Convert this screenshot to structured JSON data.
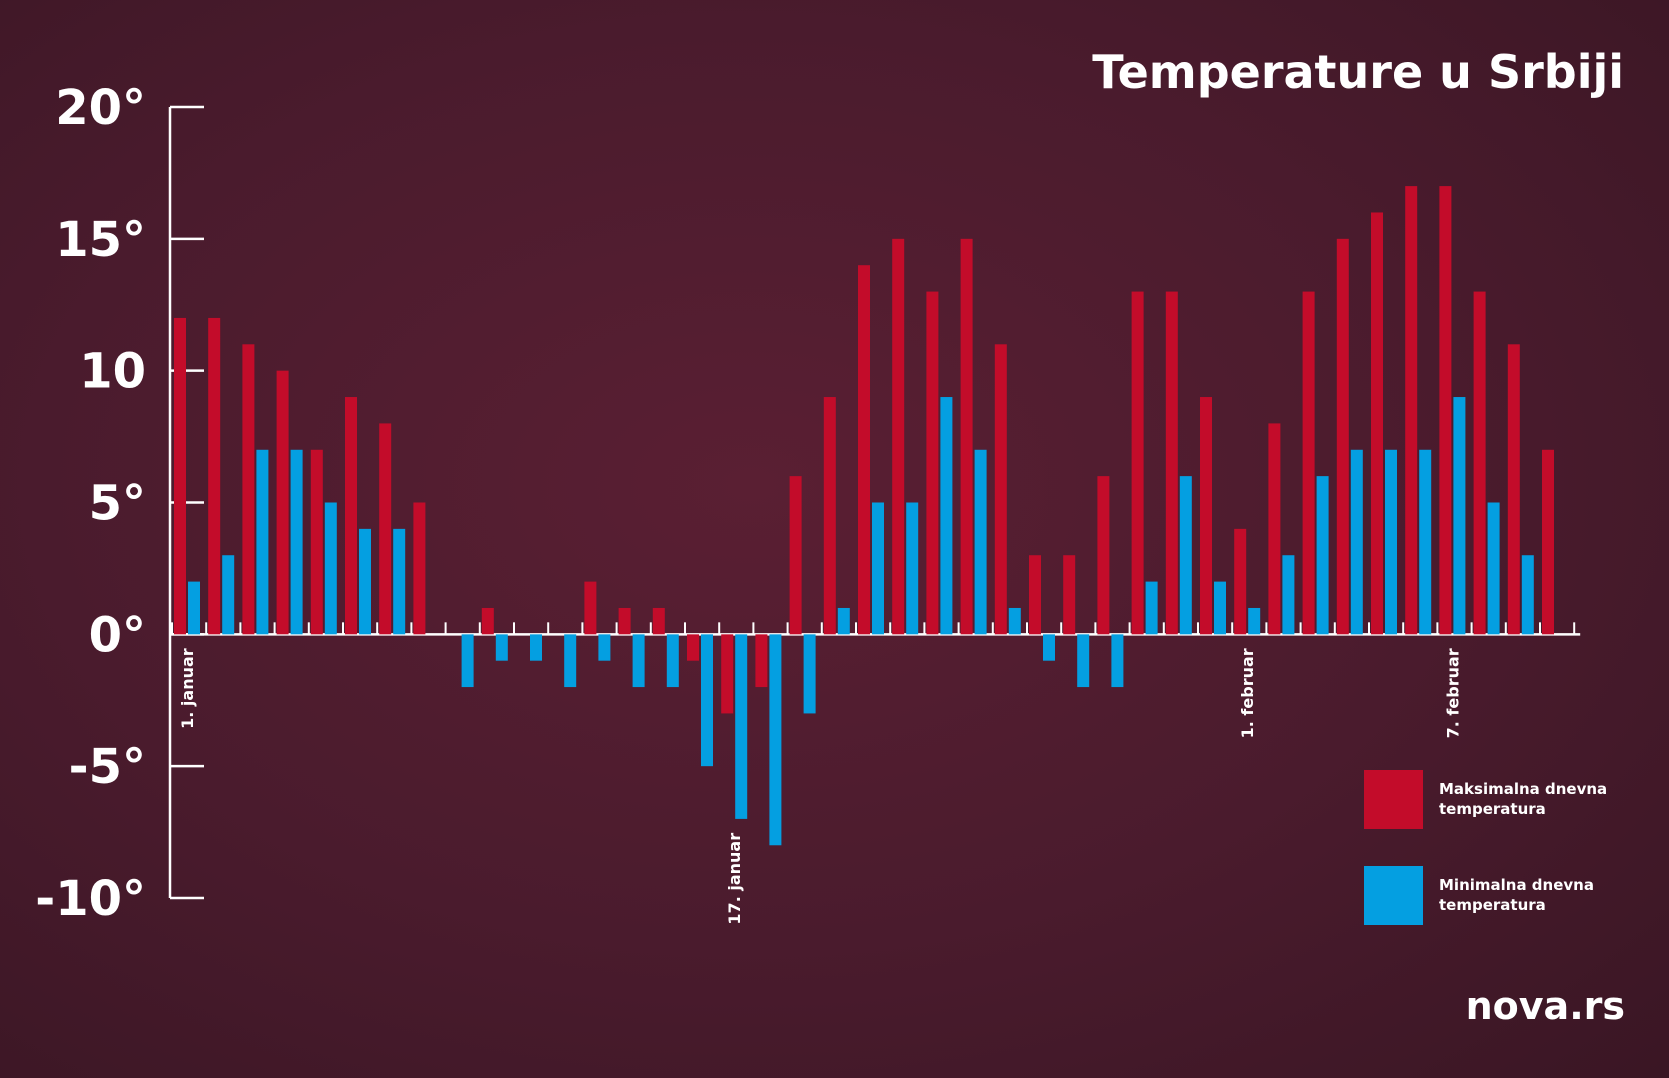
{
  "chart_data": {
    "type": "bar",
    "title": "Temperature u Srbiji",
    "ylim": [
      -10,
      20
    ],
    "yticks": [
      "20°",
      "15°",
      "10",
      "5°",
      "0°",
      "-5°",
      "-10°"
    ],
    "yticks_values": [
      20,
      15,
      10,
      5,
      0,
      -5,
      -10
    ],
    "date_labels": [
      {
        "text": "1. januar",
        "index": 0
      },
      {
        "text": "17. januar",
        "index": 16
      },
      {
        "text": "1. februar",
        "index": 31
      },
      {
        "text": "7. februar",
        "index": 37
      }
    ],
    "series": [
      {
        "name": "Maksimalna dnevna temperatura",
        "color": "#c30c2a",
        "values": [
          12,
          12,
          11,
          10,
          7,
          9,
          8,
          5,
          0,
          1,
          0,
          0,
          2,
          1,
          1,
          -1,
          -3,
          -2,
          6,
          9,
          14,
          15,
          13,
          15,
          11,
          3,
          3,
          6,
          13,
          13,
          9,
          4,
          8,
          13,
          15,
          16,
          17,
          17,
          13,
          11,
          7
        ]
      },
      {
        "name": "Minimalna dnevna temperatura",
        "color": "#049fe1",
        "values": [
          2,
          3,
          7,
          7,
          5,
          4,
          4,
          0,
          -2,
          -1,
          -1,
          -2,
          -1,
          -2,
          -2,
          -5,
          -7,
          -8,
          -3,
          1,
          5,
          5,
          9,
          7,
          1,
          -1,
          -2,
          -2,
          2,
          6,
          2,
          1,
          3,
          6,
          7,
          7,
          7,
          9,
          5,
          3,
          0
        ]
      }
    ],
    "legend": [
      {
        "label_line1": "Maksimalna dnevna",
        "label_line2": "temperatura",
        "color": "#c30c2a"
      },
      {
        "label_line1": "Minimalna dnevna",
        "label_line2": "temperatura",
        "color": "#049fe1"
      }
    ],
    "legend_position": "bottom-right",
    "grid": false
  },
  "brand": "nova.rs"
}
